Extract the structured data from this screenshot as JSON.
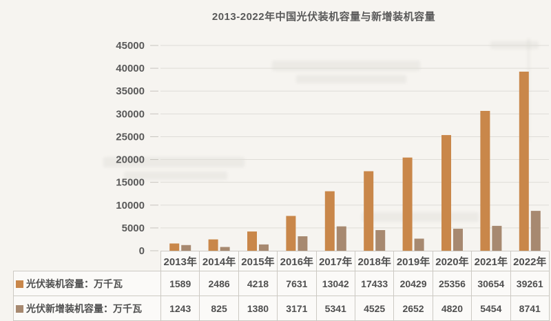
{
  "chart_data": {
    "type": "bar",
    "title": "2013-2022年中国光伏装机容量与新增装机容量",
    "categories": [
      "2013年",
      "2014年",
      "2015年",
      "2016年",
      "2017年",
      "2018年",
      "2019年",
      "2020年",
      "2021年",
      "2022年"
    ],
    "series": [
      {
        "key": "installed",
        "name": "光伏装机容量：万千瓦",
        "color": "#c9874a",
        "values": [
          1589,
          2486,
          4218,
          7631,
          13042,
          17433,
          20429,
          25356,
          30654,
          39261
        ]
      },
      {
        "key": "new-installed",
        "name": "光伏新增装机容量：万千瓦",
        "color": "#a78970",
        "values": [
          1243,
          825,
          1380,
          3171,
          5341,
          4525,
          2652,
          4820,
          5454,
          8741
        ]
      }
    ],
    "xlabel": "",
    "ylabel": "",
    "ylim": [
      0,
      45000
    ],
    "yticks": [
      0,
      5000,
      10000,
      15000,
      20000,
      25000,
      30000,
      35000,
      40000,
      45000
    ],
    "grid": true,
    "legend_position": "table-left"
  },
  "colors": {
    "background": "#f6f4f0",
    "title_text": "#595959",
    "axis_text": "#595959",
    "gridline": "#dedcd7",
    "tick_mark": "#c6c3be",
    "table_border": "#ccc9c3",
    "table_cell_bg": "#fbfaf8",
    "table_text": "#4f4f4f"
  }
}
